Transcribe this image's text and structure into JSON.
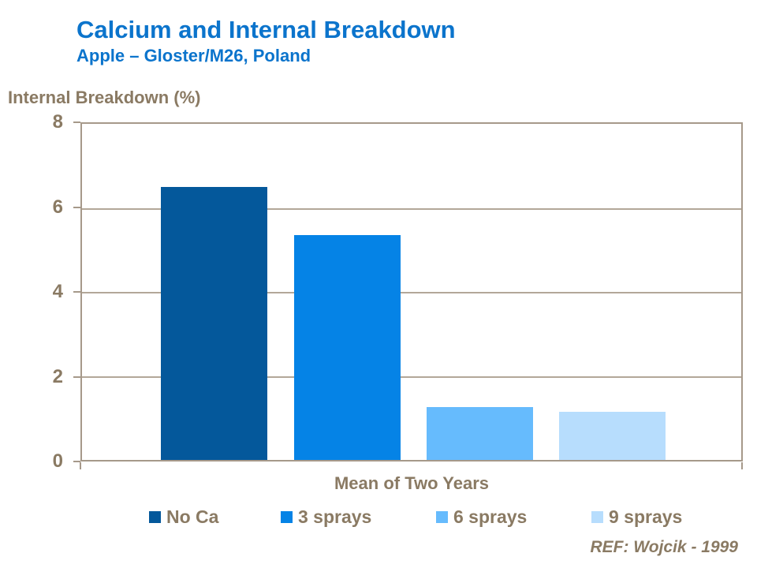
{
  "header": {
    "title": "Calcium and Internal Breakdown",
    "subtitle": "Apple – Gloster/M26, Poland",
    "title_color": "#0b74cc"
  },
  "colors": {
    "text_brown": "#8a7a63",
    "axis_line": "#a6998a",
    "gridline": "#b3a799"
  },
  "chart_data": {
    "type": "bar",
    "title": "Calcium and Internal Breakdown",
    "subtitle": "Apple – Gloster/M26, Poland",
    "ylabel": "Internal Breakdown (%)",
    "xlabel": "",
    "categories": [
      "Mean of Two Years"
    ],
    "series": [
      {
        "name": "No Ca",
        "values": [
          6.5
        ],
        "color": "#04589b"
      },
      {
        "name": "3 sprays",
        "values": [
          5.35
        ],
        "color": "#0583e6"
      },
      {
        "name": "6 sprays",
        "values": [
          1.25
        ],
        "color": "#66bbfd"
      },
      {
        "name": "9 sprays",
        "values": [
          1.15
        ],
        "color": "#b7ddfd"
      }
    ],
    "ylim": [
      0,
      8
    ],
    "yticks": [
      0,
      2,
      4,
      6,
      8
    ],
    "grid": true,
    "legend_position": "bottom"
  },
  "footer": {
    "reference": "REF: Wojcik - 1999"
  }
}
